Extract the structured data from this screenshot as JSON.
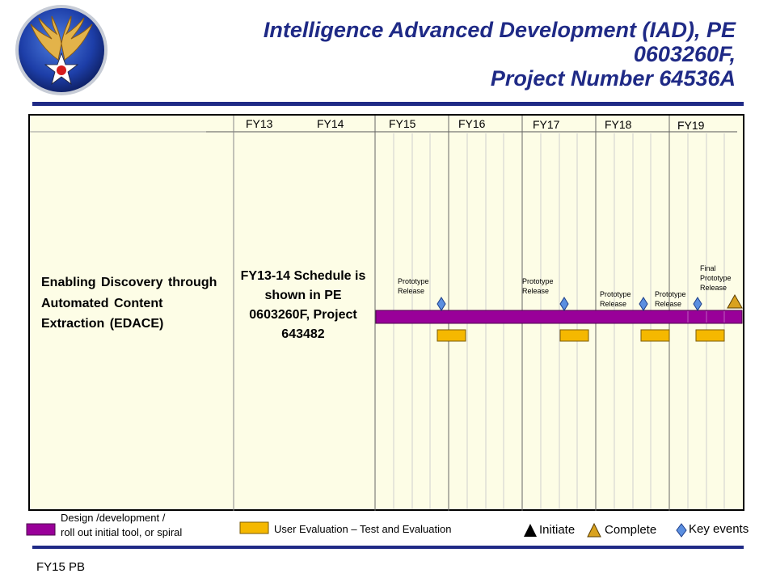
{
  "header": {
    "title_lines": [
      "Intelligence Advanced Development (IAD), PE",
      "0603260F,",
      "Project Number 64536A"
    ],
    "logo_icon": "usaf-hap-arnold-wings-icon"
  },
  "colors": {
    "navy": "#1f2a86",
    "chart_bg": "#fdfde6",
    "design_bar": "#990099",
    "user_eval": "#f5b800",
    "key_event": "#5b8fe0",
    "complete": "#d9a21e"
  },
  "schedule": {
    "fiscal_years": [
      "FY13",
      "FY14",
      "FY15",
      "FY16",
      "FY17",
      "FY18",
      "FY19"
    ],
    "task": "Enabling Discovery through Automated Content Extraction (EDACE)",
    "note": "FY13-14 Schedule is shown in PE 0603260F, Project 643482",
    "events": [
      {
        "label": "Prototype\nRelease"
      },
      {
        "label": "Prototype\nRelease"
      },
      {
        "label": "Prototype\nRelease"
      },
      {
        "label": "Prototype\nRelease"
      },
      {
        "label": "Final\nPrototype\nRelease"
      }
    ]
  },
  "legend": {
    "design": "Design /development /\nroll out initial tool, or spiral",
    "user_eval": "User Evaluation – Test and Evaluation",
    "initiate": "Initiate",
    "complete": "Complete",
    "key_events": "Key events"
  },
  "footer": {
    "label": "FY15 PB"
  }
}
